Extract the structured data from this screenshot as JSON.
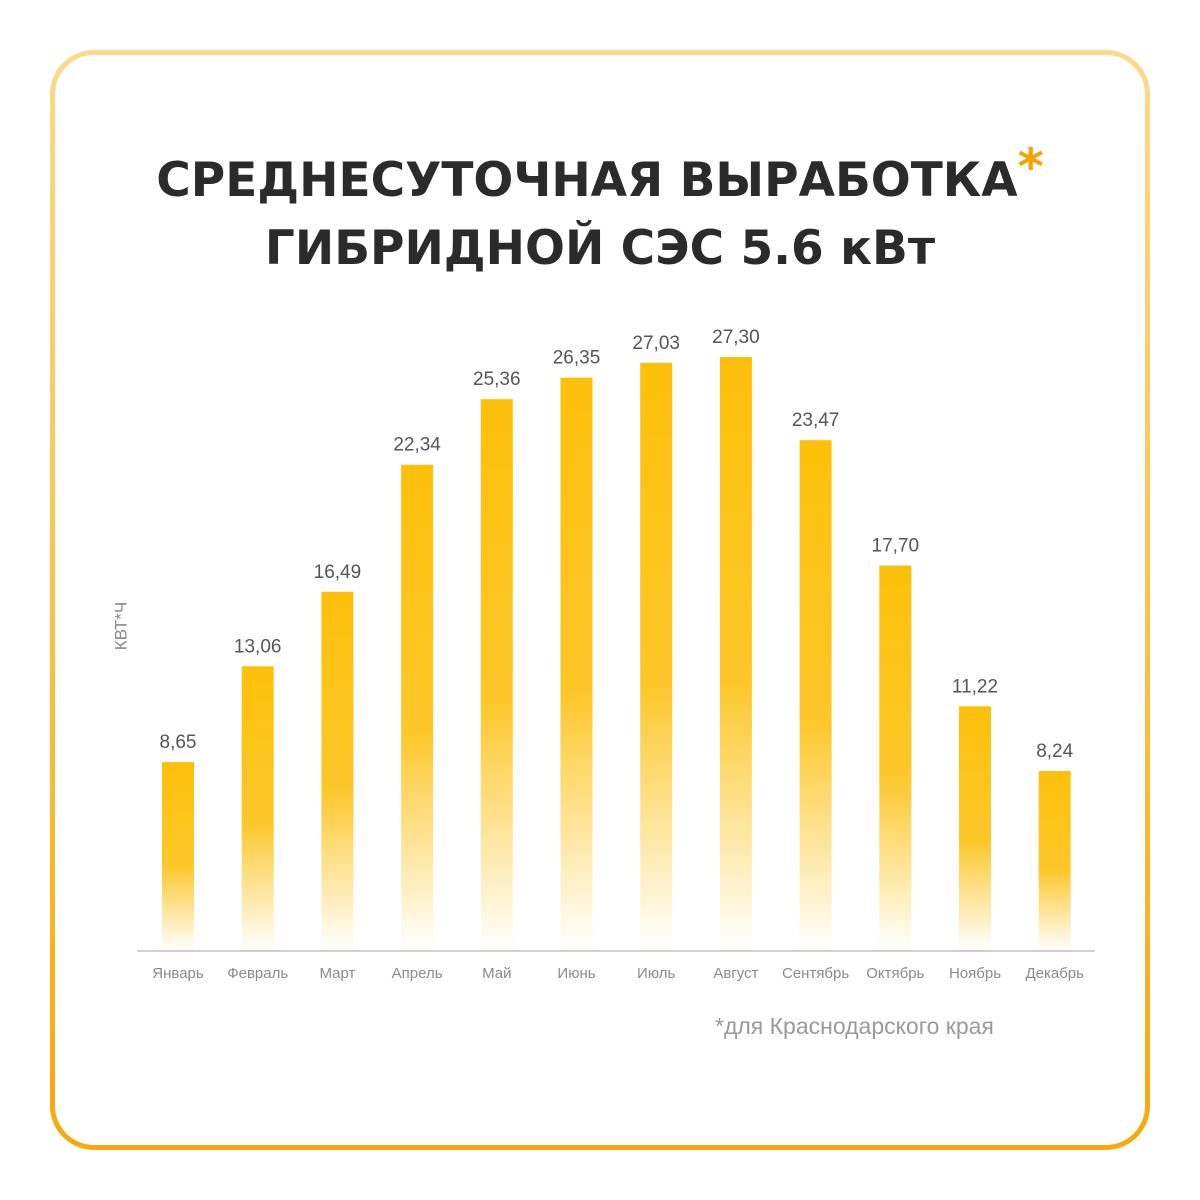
{
  "title": {
    "line1": "СРЕДНЕСУТОЧНАЯ ВЫРАБОТКА",
    "asterisk": "*",
    "line2": "ГИБРИДНОЙ СЭС 5.6 кВт"
  },
  "footnote": "*для Краснодарского края",
  "colors": {
    "bar_top": "#fdc00a",
    "bar_bottom": "#ffffff",
    "asterisk": "#f5a300",
    "border": "#f7a90a"
  },
  "chart_data": {
    "type": "bar",
    "title": "СРЕДНЕСУТОЧНАЯ ВЫРАБОТКА* ГИБРИДНОЙ СЭС 5.6 кВт",
    "xlabel": "",
    "ylabel": "КВТ*Ч",
    "categories": [
      "Январь",
      "Февраль",
      "Март",
      "Апрель",
      "Май",
      "Июнь",
      "Июль",
      "Август",
      "Сентябрь",
      "Октябрь",
      "Ноябрь",
      "Декабрь"
    ],
    "values": [
      8.65,
      13.06,
      16.49,
      22.34,
      25.36,
      26.35,
      27.03,
      27.3,
      23.47,
      17.7,
      11.22,
      8.24
    ],
    "value_labels": [
      "8,65",
      "13,06",
      "16,49",
      "22,34",
      "25,36",
      "26,35",
      "27,03",
      "27,30",
      "23,47",
      "17,70",
      "11,22",
      "8,24"
    ],
    "ylim": [
      0,
      27.3
    ],
    "grid": false,
    "legend": "none"
  }
}
